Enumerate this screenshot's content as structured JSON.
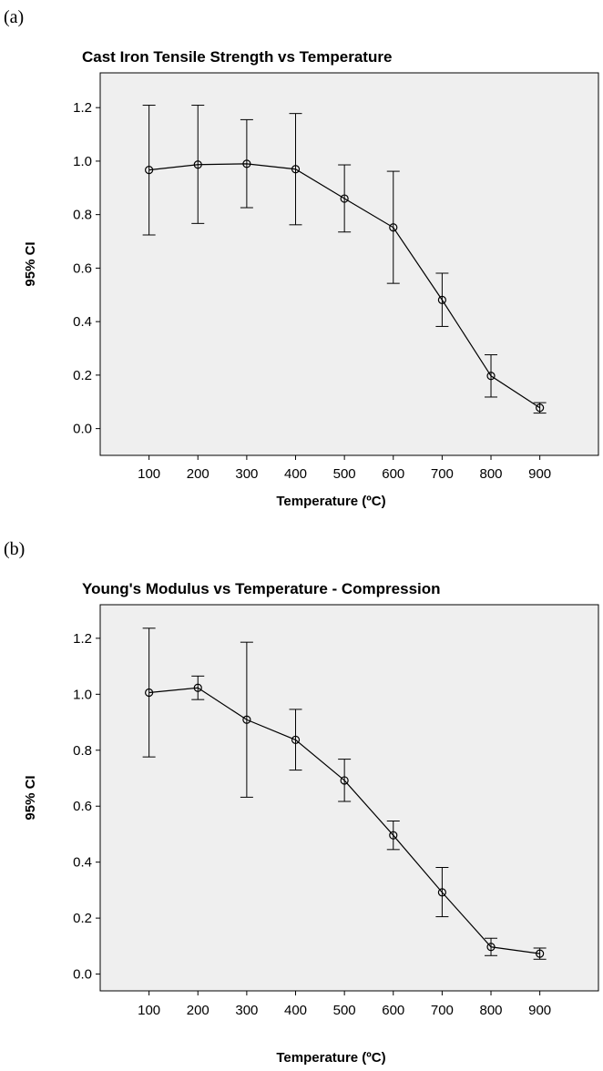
{
  "panels": [
    {
      "letter": "(a)"
    },
    {
      "letter": "(b)"
    }
  ],
  "chart_data": [
    {
      "type": "line",
      "title": "Cast Iron Tensile Strength vs Temperature",
      "xlabel": "Temperature (ºC)",
      "ylabel": "95% CI",
      "x": [
        100,
        200,
        300,
        400,
        500,
        600,
        700,
        800,
        900
      ],
      "x_ticks": [
        "100",
        "200",
        "300",
        "400",
        "500",
        "600",
        "700",
        "800",
        "900"
      ],
      "y_ticks": [
        "0.0",
        "0.2",
        "0.4",
        "0.6",
        "0.8",
        "1.0",
        "1.2"
      ],
      "ylim": [
        -0.1,
        1.33
      ],
      "series": [
        {
          "values": [
            0.967,
            0.987,
            0.99,
            0.97,
            0.86,
            0.752,
            0.481,
            0.197,
            0.078
          ],
          "ci_low": [
            0.724,
            0.767,
            0.826,
            0.762,
            0.735,
            0.543,
            0.382,
            0.118,
            0.058
          ],
          "ci_high": [
            1.209,
            1.209,
            1.155,
            1.178,
            0.986,
            0.962,
            0.581,
            0.276,
            0.097
          ]
        }
      ],
      "grid": false,
      "background": "#efefef",
      "marker": "open-circle"
    },
    {
      "type": "line",
      "title": "Young's Modulus vs Temperature - Compression",
      "xlabel": "Temperature (ºC)",
      "ylabel": "95% CI",
      "x": [
        100,
        200,
        300,
        400,
        500,
        600,
        700,
        800,
        900
      ],
      "x_ticks": [
        "100",
        "200",
        "300",
        "400",
        "500",
        "600",
        "700",
        "800",
        "900"
      ],
      "y_ticks": [
        "0.0",
        "0.2",
        "0.4",
        "0.6",
        "0.8",
        "1.0",
        "1.2"
      ],
      "ylim": [
        -0.06,
        1.32
      ],
      "series": [
        {
          "values": [
            1.006,
            1.023,
            0.909,
            0.837,
            0.692,
            0.496,
            0.292,
            0.097,
            0.073
          ],
          "ci_low": [
            0.776,
            0.981,
            0.632,
            0.729,
            0.617,
            0.445,
            0.205,
            0.066,
            0.053
          ],
          "ci_high": [
            1.236,
            1.065,
            1.186,
            0.946,
            0.768,
            0.547,
            0.381,
            0.128,
            0.093
          ]
        }
      ],
      "grid": false,
      "background": "#efefef",
      "marker": "open-circle"
    }
  ]
}
